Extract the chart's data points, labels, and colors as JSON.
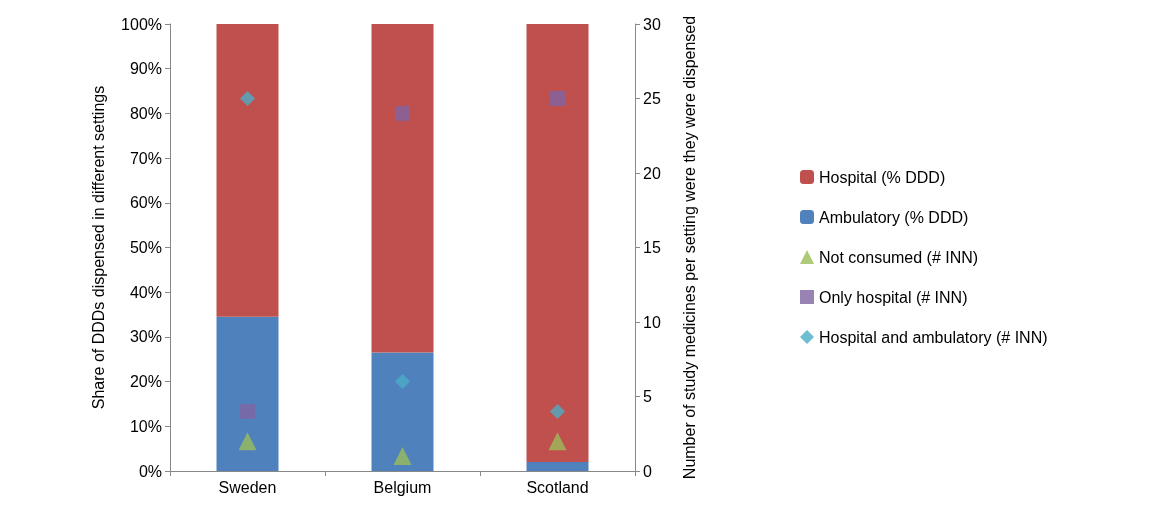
{
  "chart_data": {
    "type": "bar",
    "stacked": true,
    "categories": [
      "Sweden",
      "Belgium",
      "Scotland"
    ],
    "ylabel": "Share of DDDs dispensed in different settings",
    "y2label": "Number of study medicines per setting were they were dispensed",
    "ylim": [
      0,
      100
    ],
    "yticks": [
      {
        "value": 0,
        "label": "0%"
      },
      {
        "value": 10,
        "label": "10%"
      },
      {
        "value": 20,
        "label": "20%"
      },
      {
        "value": 30,
        "label": "30%"
      },
      {
        "value": 40,
        "label": "40%"
      },
      {
        "value": 50,
        "label": "50%"
      },
      {
        "value": 60,
        "label": "60%"
      },
      {
        "value": 70,
        "label": "70%"
      },
      {
        "value": 80,
        "label": "80%"
      },
      {
        "value": 90,
        "label": "90%"
      },
      {
        "value": 100,
        "label": "100%"
      }
    ],
    "y2lim": [
      0,
      30
    ],
    "y2ticks": [
      0,
      5,
      10,
      15,
      20,
      25,
      30
    ],
    "series": [
      {
        "name": "Ambulatory (% DDD)",
        "color": "#4f81bd",
        "values": [
          34.5,
          26.5,
          2
        ]
      },
      {
        "name": "Hospital (% DDD)",
        "color": "#c0504d",
        "values": [
          65.5,
          73.5,
          98
        ]
      },
      {
        "name": "Not consumed (# INN)",
        "type": "scatter",
        "axis": "y2",
        "marker": "triangle",
        "color": "#9bbb59",
        "x": [
          "Sweden",
          "Belgium",
          "Scotland"
        ],
        "values": [
          2,
          1,
          2
        ]
      },
      {
        "name": "Only hospital (# INN)",
        "type": "scatter",
        "axis": "y2",
        "marker": "square",
        "color": "#8064a2",
        "x": [
          "Sweden",
          "Belgium",
          "Scotland"
        ],
        "values": [
          4,
          24,
          25
        ]
      },
      {
        "name": "Hospital and ambulatory (# INN)",
        "type": "scatter",
        "axis": "y2",
        "marker": "diamond",
        "color": "#4bacc6",
        "x": [
          "Sweden",
          "Belgium",
          "Scotland"
        ],
        "values": [
          25,
          6,
          4
        ]
      }
    ],
    "grid": false,
    "legend": "right"
  }
}
